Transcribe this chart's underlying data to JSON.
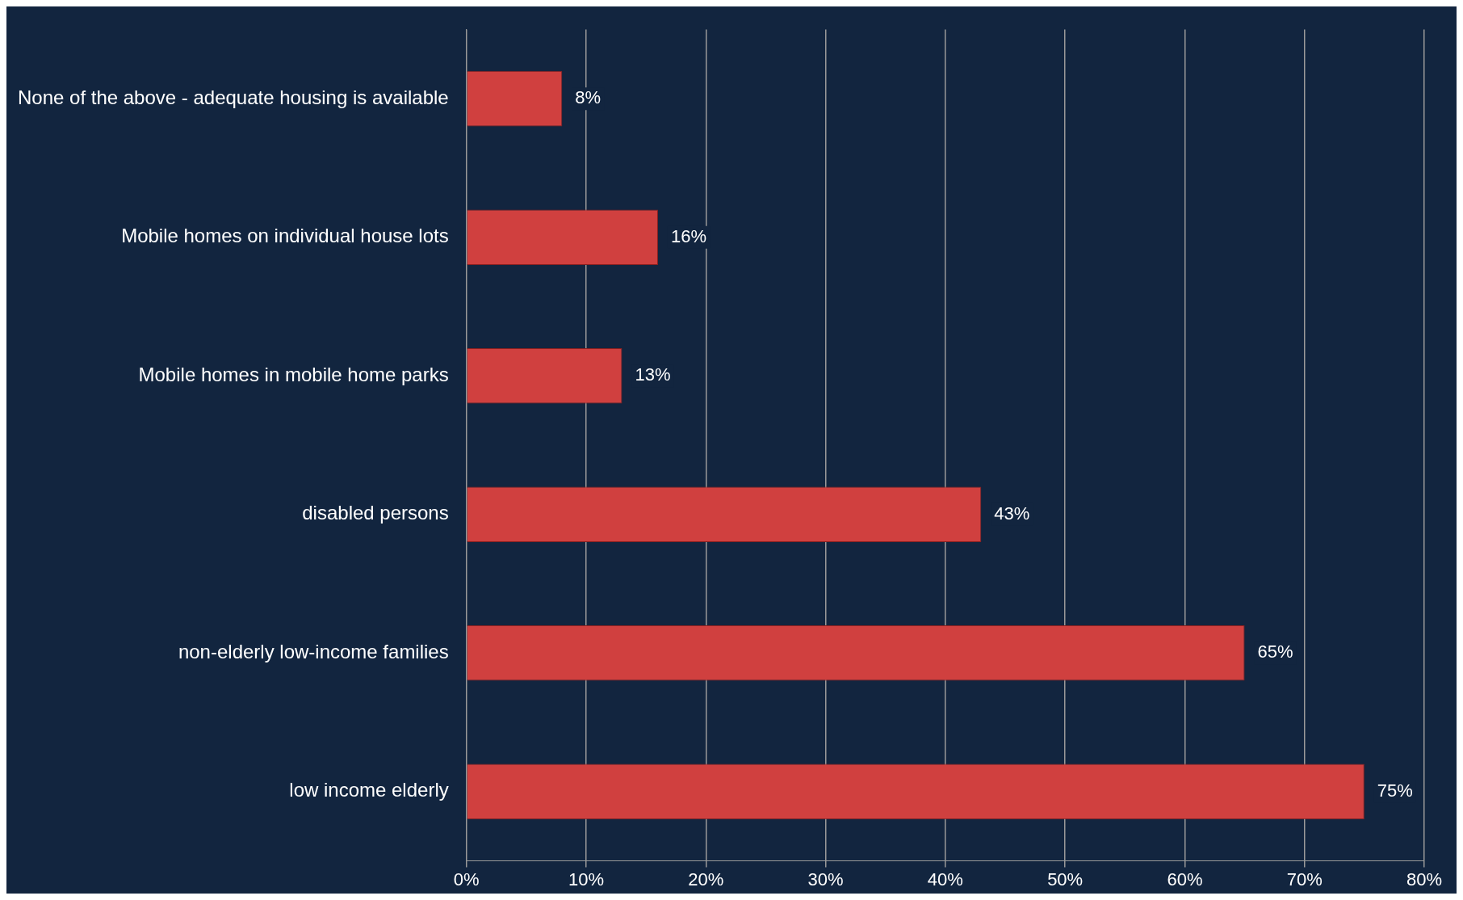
{
  "chart_data": {
    "type": "bar",
    "orientation": "horizontal",
    "categories": [
      "None of the above - adequate housing is available",
      "Mobile homes on individual house lots",
      "Mobile homes in mobile home parks",
      "disabled persons",
      "non-elderly low-income families",
      "low income elderly"
    ],
    "values": [
      8,
      16,
      13,
      43,
      65,
      75
    ],
    "value_labels": [
      "8%",
      "16%",
      "13%",
      "43%",
      "65%",
      "75%"
    ],
    "color": "#d0403f",
    "xlim": [
      0,
      80
    ],
    "xticks": [
      {
        "value": 0,
        "label": "0%"
      },
      {
        "value": 10,
        "label": "10%"
      },
      {
        "value": 20,
        "label": "20%"
      },
      {
        "value": 30,
        "label": "30%"
      },
      {
        "value": 40,
        "label": "40%"
      },
      {
        "value": 50,
        "label": "50%"
      },
      {
        "value": 60,
        "label": "60%"
      },
      {
        "value": 70,
        "label": "70%"
      },
      {
        "value": 80,
        "label": "80%"
      }
    ],
    "grid": "x",
    "legend": false
  }
}
